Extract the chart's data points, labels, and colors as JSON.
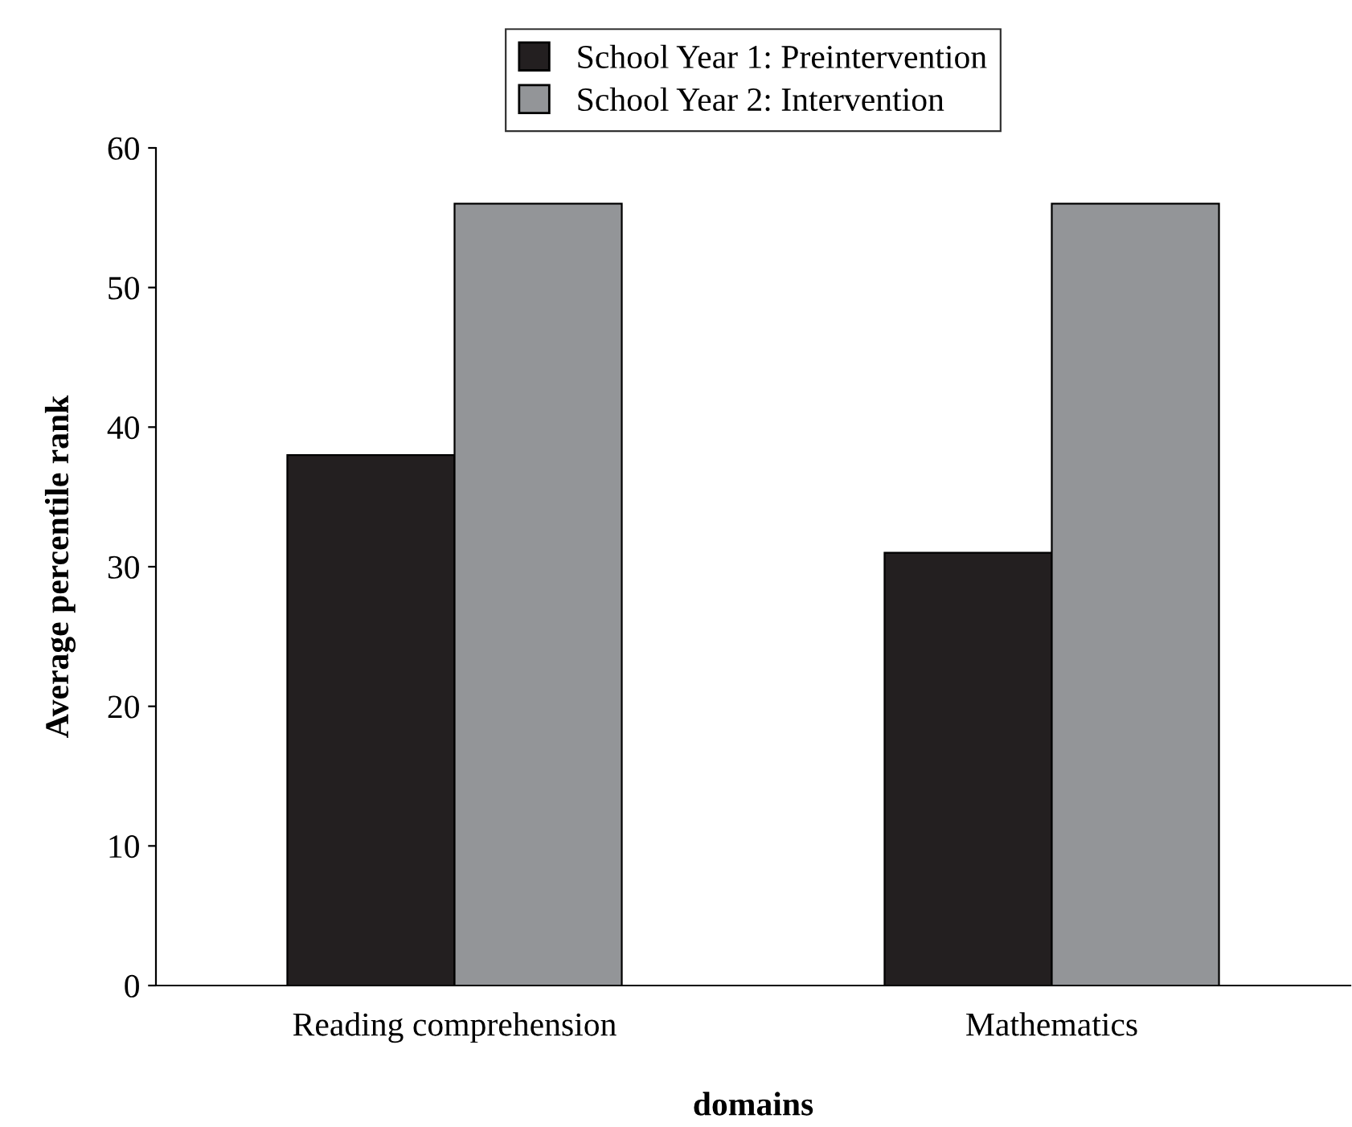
{
  "chart_data": {
    "type": "bar",
    "xlabel": "domains",
    "ylabel": "Average percentile rank",
    "categories": [
      "Reading comprehension",
      "Mathematics"
    ],
    "series": [
      {
        "name": "School Year 1: Preintervention",
        "color": "#231f20",
        "values": [
          38,
          31
        ]
      },
      {
        "name": "School Year 2: Intervention",
        "color": "#939598",
        "values": [
          56,
          56
        ]
      }
    ],
    "ylim": [
      0,
      60
    ],
    "yticks": [
      0,
      10,
      20,
      30,
      40,
      50,
      60
    ],
    "legend": "top",
    "grid": false
  }
}
